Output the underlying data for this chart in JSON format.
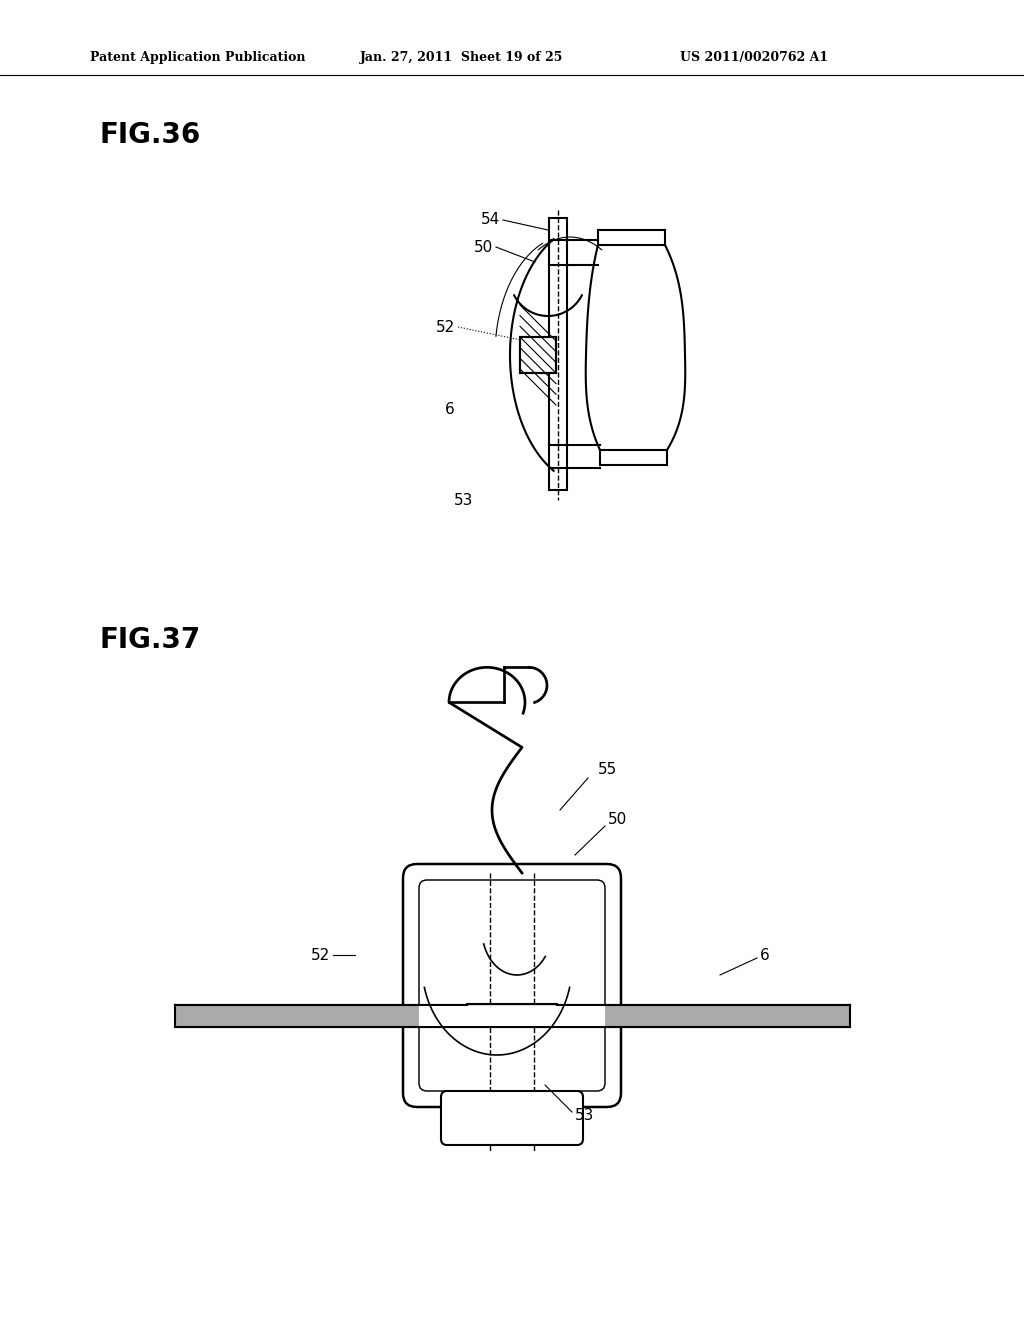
{
  "background_color": "#ffffff",
  "line_color": "#000000",
  "line_width": 1.5,
  "header_text": "Patent Application Publication",
  "header_date": "Jan. 27, 2011  Sheet 19 of 25",
  "header_patent": "US 2011/0020762 A1",
  "fig36_label": "FIG.36",
  "fig37_label": "FIG.37"
}
